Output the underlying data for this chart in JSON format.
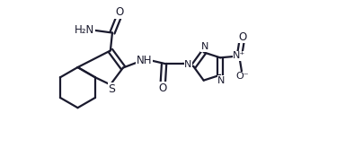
{
  "bg_color": "#ffffff",
  "line_color": "#1a1a2e",
  "line_width": 1.6,
  "font_size": 8.5,
  "xlim": [
    0,
    11.0
  ],
  "ylim": [
    0,
    6.5
  ],
  "figsize": [
    4.04,
    1.74
  ],
  "dpi": 100
}
